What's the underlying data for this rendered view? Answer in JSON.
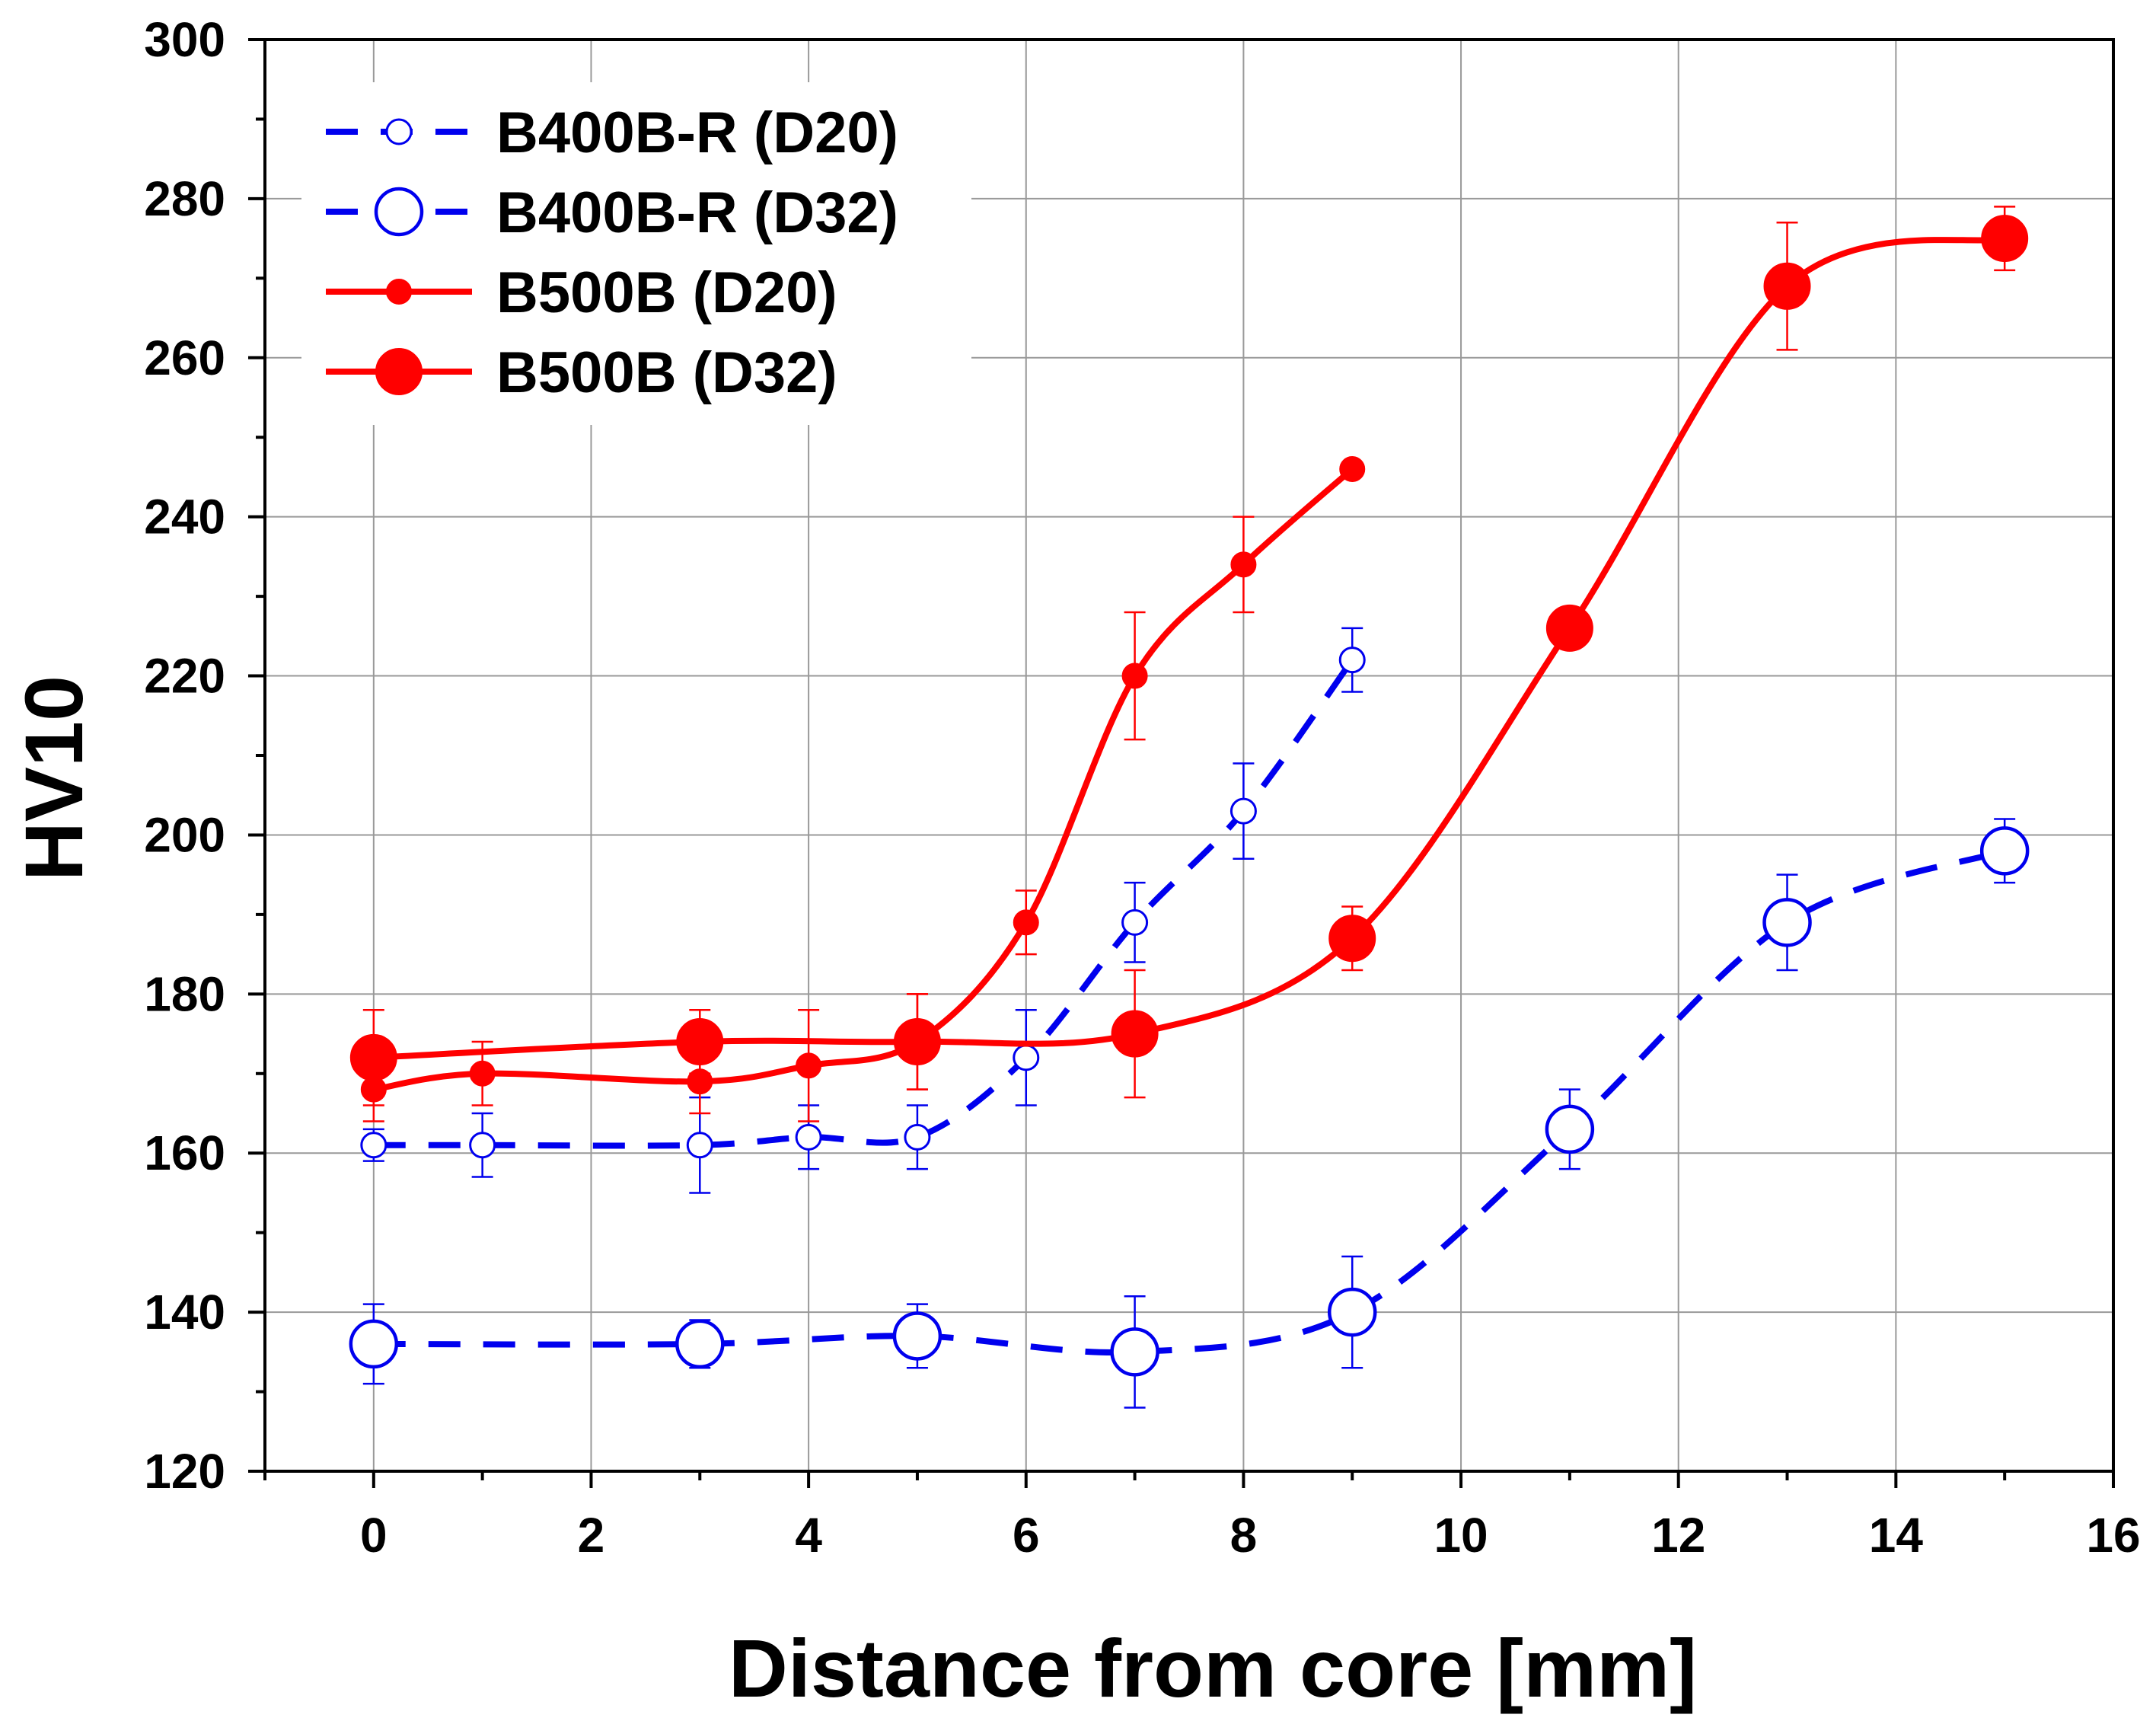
{
  "chart_data": {
    "type": "line",
    "title": "",
    "xlabel": "Distance from core [mm]",
    "ylabel": "HV10",
    "xlim": [
      -1,
      16
    ],
    "ylim": [
      120,
      300
    ],
    "xticks": [
      0,
      2,
      4,
      6,
      8,
      10,
      12,
      14,
      16
    ],
    "yticks": [
      120,
      140,
      160,
      180,
      200,
      220,
      240,
      260,
      280,
      300
    ],
    "xtick_labels": [
      "0",
      "2",
      "4",
      "6",
      "8",
      "10",
      "12",
      "14",
      "16"
    ],
    "ytick_labels": [
      "120",
      "140",
      "160",
      "180",
      "200",
      "220",
      "240",
      "260",
      "280",
      "300"
    ],
    "grid": true,
    "legend_position": "top-left",
    "series": [
      {
        "name": "B400B-R (D20)",
        "color": "#0000ee",
        "line_style": "dashed",
        "marker": "open-circle-small",
        "x": [
          0,
          1,
          3,
          4,
          5,
          6,
          7,
          8,
          9
        ],
        "y": [
          161,
          161,
          161,
          162,
          162,
          172,
          189,
          203,
          222
        ],
        "err": [
          2,
          4,
          6,
          4,
          4,
          6,
          5,
          6,
          4
        ]
      },
      {
        "name": "B400B-R (D32)",
        "color": "#0000ee",
        "line_style": "dashed",
        "marker": "open-circle-large",
        "x": [
          0,
          3,
          5,
          7,
          9,
          11,
          13,
          15
        ],
        "y": [
          136,
          136,
          137,
          135,
          140,
          163,
          189,
          198
        ],
        "err": [
          5,
          3,
          4,
          7,
          7,
          5,
          6,
          4
        ]
      },
      {
        "name": "B500B (D20)",
        "color": "#ff0000",
        "line_style": "solid",
        "marker": "filled-circle-small",
        "x": [
          0,
          1,
          3,
          4,
          5,
          6,
          7,
          8,
          9
        ],
        "y": [
          168,
          170,
          169,
          171,
          174,
          189,
          220,
          234,
          246
        ],
        "err": [
          4,
          4,
          4,
          7,
          6,
          4,
          8,
          6,
          0
        ]
      },
      {
        "name": "B500B (D32)",
        "color": "#ff0000",
        "line_style": "solid",
        "marker": "filled-circle-large",
        "x": [
          0,
          3,
          5,
          7,
          9,
          11,
          13,
          15
        ],
        "y": [
          172,
          174,
          174,
          175,
          187,
          226,
          269,
          275
        ],
        "err": [
          6,
          4,
          6,
          8,
          4,
          0,
          8,
          4
        ]
      }
    ]
  }
}
